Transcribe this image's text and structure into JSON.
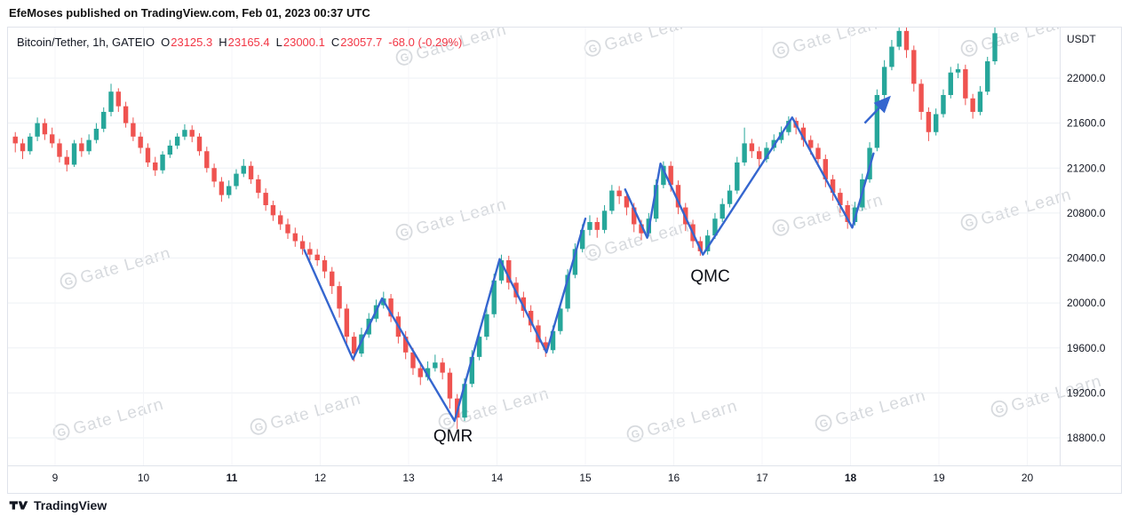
{
  "attribution": {
    "text": "EfeMoses published on TradingView.com, Feb 01, 2023 00:37 UTC"
  },
  "legend": {
    "symbol": "Bitcoin/Tether, 1h, GATEIO",
    "o_label": "O",
    "o": "23125.3",
    "h_label": "H",
    "h": "23165.4",
    "l_label": "L",
    "l": "23000.1",
    "c_label": "C",
    "c": "23057.7",
    "change": "-68.0 (-0.29%)"
  },
  "axis": {
    "unit": "USDT"
  },
  "footer": {
    "brand": "TradingView"
  },
  "watermark": {
    "text": "Gate Learn",
    "glyph": "G"
  },
  "colors": {
    "up": "#26a69a",
    "down": "#ef5350",
    "line": "#3566cf",
    "grid": "#eef1f5",
    "axis_text": "#131722",
    "red": "#f23645"
  },
  "chart_data": {
    "type": "candlestick",
    "title": "Bitcoin/Tether, 1h, GATEIO",
    "y_ticks": [
      {
        "label": "22000.0",
        "value": 22000
      },
      {
        "label": "21600.0",
        "value": 21600
      },
      {
        "label": "21200.0",
        "value": 21200
      },
      {
        "label": "20800.0",
        "value": 20800
      },
      {
        "label": "20400.0",
        "value": 20400
      },
      {
        "label": "20000.0",
        "value": 20000
      },
      {
        "label": "19600.0",
        "value": 19600
      },
      {
        "label": "19200.0",
        "value": 19200
      },
      {
        "label": "18800.0",
        "value": 18800
      }
    ],
    "x_ticks": [
      {
        "label": "9",
        "day": 9,
        "bold": false
      },
      {
        "label": "10",
        "day": 10,
        "bold": false
      },
      {
        "label": "11",
        "day": 11,
        "bold": true
      },
      {
        "label": "12",
        "day": 12,
        "bold": false
      },
      {
        "label": "13",
        "day": 13,
        "bold": false
      },
      {
        "label": "14",
        "day": 14,
        "bold": false
      },
      {
        "label": "15",
        "day": 15,
        "bold": false
      },
      {
        "label": "16",
        "day": 16,
        "bold": false
      },
      {
        "label": "17",
        "day": 17,
        "bold": false
      },
      {
        "label": "18",
        "day": 18,
        "bold": true
      },
      {
        "label": "19",
        "day": 19,
        "bold": false
      },
      {
        "label": "20",
        "day": 20,
        "bold": false
      }
    ],
    "start_day": 8.55,
    "interval_days": 0.0833333,
    "candles": [
      [
        21480,
        21520,
        21340,
        21420
      ],
      [
        21420,
        21460,
        21280,
        21350
      ],
      [
        21350,
        21510,
        21320,
        21480
      ],
      [
        21480,
        21650,
        21440,
        21600
      ],
      [
        21600,
        21640,
        21450,
        21500
      ],
      [
        21500,
        21560,
        21380,
        21420
      ],
      [
        21420,
        21460,
        21250,
        21300
      ],
      [
        21300,
        21360,
        21170,
        21230
      ],
      [
        21230,
        21450,
        21210,
        21420
      ],
      [
        21420,
        21470,
        21300,
        21350
      ],
      [
        21350,
        21500,
        21320,
        21450
      ],
      [
        21450,
        21600,
        21420,
        21550
      ],
      [
        21550,
        21740,
        21520,
        21700
      ],
      [
        21700,
        21950,
        21660,
        21880
      ],
      [
        21880,
        21910,
        21700,
        21750
      ],
      [
        21750,
        21790,
        21560,
        21600
      ],
      [
        21600,
        21650,
        21440,
        21480
      ],
      [
        21480,
        21520,
        21330,
        21380
      ],
      [
        21380,
        21420,
        21210,
        21250
      ],
      [
        21250,
        21300,
        21130,
        21180
      ],
      [
        21180,
        21350,
        21150,
        21320
      ],
      [
        21320,
        21450,
        21290,
        21400
      ],
      [
        21400,
        21510,
        21370,
        21480
      ],
      [
        21480,
        21590,
        21450,
        21540
      ],
      [
        21540,
        21580,
        21430,
        21480
      ],
      [
        21480,
        21510,
        21310,
        21350
      ],
      [
        21350,
        21390,
        21160,
        21200
      ],
      [
        21200,
        21240,
        21030,
        21080
      ],
      [
        21080,
        21120,
        20900,
        20960
      ],
      [
        20960,
        21090,
        20930,
        21040
      ],
      [
        21040,
        21190,
        21010,
        21150
      ],
      [
        21150,
        21280,
        21120,
        21220
      ],
      [
        21220,
        21260,
        21060,
        21100
      ],
      [
        21100,
        21140,
        20930,
        20980
      ],
      [
        20980,
        21020,
        20820,
        20870
      ],
      [
        20870,
        20910,
        20730,
        20780
      ],
      [
        20780,
        20820,
        20650,
        20700
      ],
      [
        20700,
        20750,
        20570,
        20620
      ],
      [
        20620,
        20670,
        20500,
        20550
      ],
      [
        20550,
        20600,
        20430,
        20480
      ],
      [
        20480,
        20540,
        20380,
        20430
      ],
      [
        20430,
        20480,
        20330,
        20380
      ],
      [
        20380,
        20420,
        20220,
        20280
      ],
      [
        20280,
        20320,
        20080,
        20150
      ],
      [
        20150,
        20190,
        19870,
        19950
      ],
      [
        19950,
        19990,
        19620,
        19700
      ],
      [
        19700,
        19740,
        19480,
        19550
      ],
      [
        19550,
        19780,
        19520,
        19720
      ],
      [
        19720,
        19910,
        19690,
        19860
      ],
      [
        19860,
        20030,
        19830,
        19980
      ],
      [
        19980,
        20100,
        19950,
        20040
      ],
      [
        20040,
        20080,
        19830,
        19880
      ],
      [
        19880,
        19920,
        19640,
        19700
      ],
      [
        19700,
        19750,
        19500,
        19560
      ],
      [
        19560,
        19600,
        19360,
        19420
      ],
      [
        19420,
        19470,
        19270,
        19340
      ],
      [
        19340,
        19480,
        19310,
        19420
      ],
      [
        19420,
        19540,
        19390,
        19470
      ],
      [
        19470,
        19510,
        19320,
        19380
      ],
      [
        19380,
        19420,
        19060,
        19150
      ],
      [
        19150,
        19190,
        18880,
        18980
      ],
      [
        18980,
        19330,
        18950,
        19280
      ],
      [
        19280,
        19580,
        19250,
        19520
      ],
      [
        19520,
        19760,
        19490,
        19700
      ],
      [
        19700,
        19960,
        19670,
        19900
      ],
      [
        19900,
        20260,
        19870,
        20200
      ],
      [
        20200,
        20430,
        20170,
        20380
      ],
      [
        20380,
        20420,
        20120,
        20180
      ],
      [
        20180,
        20230,
        19990,
        20050
      ],
      [
        20050,
        20100,
        19870,
        19930
      ],
      [
        19930,
        19980,
        19740,
        19800
      ],
      [
        19800,
        19850,
        19590,
        19650
      ],
      [
        19650,
        19700,
        19520,
        19580
      ],
      [
        19580,
        19800,
        19550,
        19750
      ],
      [
        19750,
        20000,
        19720,
        19950
      ],
      [
        19950,
        20300,
        19920,
        20250
      ],
      [
        20250,
        20530,
        20220,
        20480
      ],
      [
        20480,
        20700,
        20450,
        20650
      ],
      [
        20650,
        20780,
        20600,
        20720
      ],
      [
        20720,
        20760,
        20580,
        20650
      ],
      [
        20650,
        20870,
        20620,
        20820
      ],
      [
        20820,
        21050,
        20790,
        21000
      ],
      [
        21000,
        21040,
        20880,
        20950
      ],
      [
        20950,
        20990,
        20780,
        20850
      ],
      [
        20850,
        20890,
        20630,
        20700
      ],
      [
        20700,
        20740,
        20560,
        20620
      ],
      [
        20620,
        20800,
        20590,
        20750
      ],
      [
        20750,
        21100,
        20720,
        21050
      ],
      [
        21050,
        21260,
        21020,
        21220
      ],
      [
        21220,
        21260,
        20990,
        21050
      ],
      [
        21050,
        21090,
        20790,
        20850
      ],
      [
        20850,
        20890,
        20640,
        20700
      ],
      [
        20700,
        20740,
        20490,
        20550
      ],
      [
        20550,
        20590,
        20420,
        20460
      ],
      [
        20460,
        20650,
        20430,
        20600
      ],
      [
        20600,
        20800,
        20570,
        20750
      ],
      [
        20750,
        20930,
        20720,
        20880
      ],
      [
        20880,
        21050,
        20850,
        21000
      ],
      [
        21000,
        21300,
        20970,
        21250
      ],
      [
        21250,
        21560,
        21220,
        21420
      ],
      [
        21420,
        21460,
        21290,
        21350
      ],
      [
        21350,
        21390,
        21210,
        21280
      ],
      [
        21280,
        21430,
        21250,
        21380
      ],
      [
        21380,
        21500,
        21350,
        21450
      ],
      [
        21450,
        21570,
        21420,
        21520
      ],
      [
        21520,
        21660,
        21490,
        21620
      ],
      [
        21620,
        21650,
        21500,
        21560
      ],
      [
        21560,
        21600,
        21390,
        21450
      ],
      [
        21450,
        21490,
        21320,
        21380
      ],
      [
        21380,
        21420,
        21210,
        21280
      ],
      [
        21280,
        21320,
        21030,
        21100
      ],
      [
        21100,
        21140,
        20910,
        20980
      ],
      [
        20980,
        21020,
        20800,
        20870
      ],
      [
        20870,
        20910,
        20660,
        20720
      ],
      [
        20720,
        20900,
        20690,
        20850
      ],
      [
        20850,
        21150,
        20820,
        21100
      ],
      [
        21100,
        21430,
        21070,
        21380
      ],
      [
        21380,
        21900,
        21350,
        21850
      ],
      [
        21850,
        22160,
        21820,
        22100
      ],
      [
        22100,
        22340,
        22070,
        22280
      ],
      [
        22280,
        22450,
        22250,
        22420
      ],
      [
        22420,
        22460,
        22180,
        22250
      ],
      [
        22250,
        22290,
        21880,
        21950
      ],
      [
        21950,
        21990,
        21630,
        21700
      ],
      [
        21700,
        21740,
        21440,
        21520
      ],
      [
        21520,
        21730,
        21490,
        21680
      ],
      [
        21680,
        21900,
        21650,
        21850
      ],
      [
        21850,
        22100,
        21820,
        22050
      ],
      [
        22050,
        22130,
        22000,
        22080
      ],
      [
        22080,
        22120,
        21760,
        21820
      ],
      [
        21820,
        21860,
        21640,
        21700
      ],
      [
        21700,
        21930,
        21670,
        21880
      ],
      [
        21880,
        22190,
        21850,
        22150
      ],
      [
        22150,
        22450,
        22120,
        22400
      ]
    ],
    "trendlines": [
      {
        "name": "qmr-pattern-line",
        "points": [
          [
            11.82,
            20470
          ],
          [
            12.37,
            19500
          ],
          [
            12.7,
            20040
          ],
          [
            13.52,
            18950
          ],
          [
            14.03,
            20390
          ],
          [
            14.56,
            19560
          ],
          [
            15.0,
            20750
          ]
        ]
      },
      {
        "name": "qmc-pattern-line",
        "points": [
          [
            15.45,
            21010
          ],
          [
            15.7,
            20580
          ],
          [
            15.85,
            21240
          ],
          [
            16.33,
            20430
          ],
          [
            17.34,
            21650
          ],
          [
            18.02,
            20670
          ],
          [
            18.26,
            21330
          ]
        ]
      }
    ],
    "arrow": {
      "from": [
        18.16,
        21600
      ],
      "to": [
        18.44,
        21830
      ]
    },
    "annotations": [
      {
        "text": "QMR",
        "day": 13.28,
        "price": 18770
      },
      {
        "text": "QMC",
        "day": 16.19,
        "price": 20190
      }
    ]
  }
}
